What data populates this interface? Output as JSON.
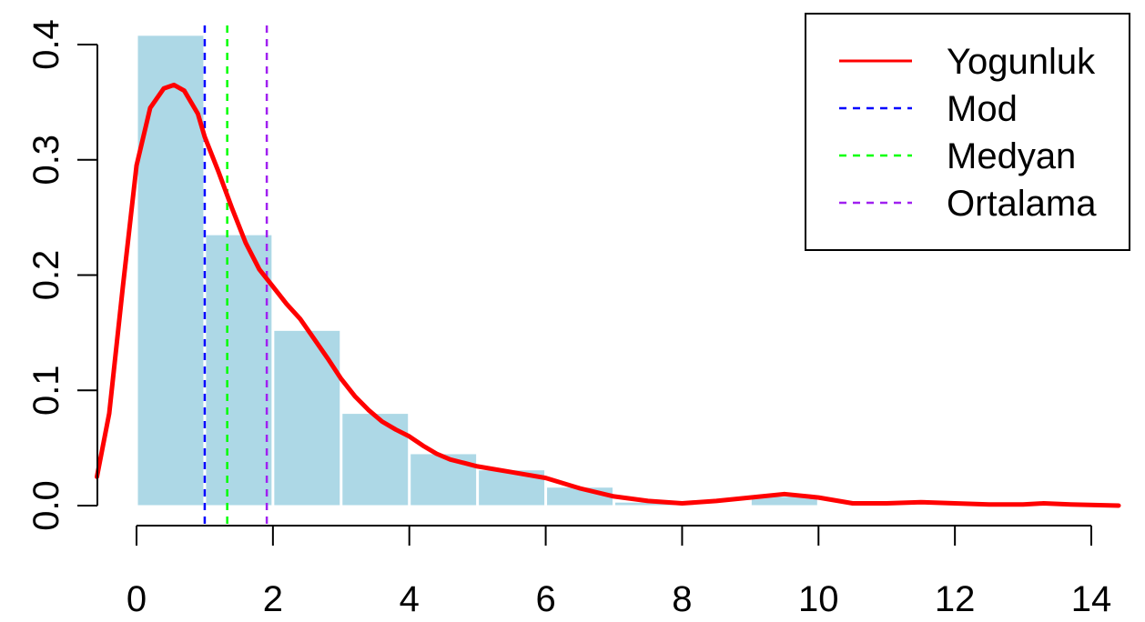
{
  "chart_data": {
    "type": "bar",
    "title": "",
    "xlabel": "",
    "ylabel": "",
    "xlim": [
      -0.6,
      14.4
    ],
    "ylim": [
      0,
      0.4
    ],
    "x_ticks": [
      "0",
      "2",
      "4",
      "6",
      "8",
      "10",
      "12",
      "14"
    ],
    "y_ticks": [
      "0.0",
      "0.1",
      "0.2",
      "0.3",
      "0.4"
    ],
    "histogram": {
      "color": "#add8e6",
      "bins": [
        {
          "x0": 0,
          "x1": 1,
          "density": 0.408
        },
        {
          "x0": 1,
          "x1": 2,
          "density": 0.235
        },
        {
          "x0": 2,
          "x1": 3,
          "density": 0.152
        },
        {
          "x0": 3,
          "x1": 4,
          "density": 0.08
        },
        {
          "x0": 4,
          "x1": 5,
          "density": 0.045
        },
        {
          "x0": 5,
          "x1": 6,
          "density": 0.031
        },
        {
          "x0": 6,
          "x1": 7,
          "density": 0.016
        },
        {
          "x0": 7,
          "x1": 8,
          "density": 0.003
        },
        {
          "x0": 8,
          "x1": 9,
          "density": 0.0
        },
        {
          "x0": 9,
          "x1": 10,
          "density": 0.008
        },
        {
          "x0": 10,
          "x1": 11,
          "density": 0.0
        },
        {
          "x0": 11,
          "x1": 12,
          "density": 0.0
        },
        {
          "x0": 12,
          "x1": 13,
          "density": 0.0
        },
        {
          "x0": 13,
          "x1": 14,
          "density": 0.0
        }
      ]
    },
    "series": [
      {
        "name": "Yogunluk",
        "type": "line",
        "color": "#ff0000",
        "x": [
          -0.58,
          -0.4,
          -0.2,
          0.0,
          0.2,
          0.4,
          0.55,
          0.7,
          0.9,
          1.0,
          1.2,
          1.4,
          1.6,
          1.8,
          2.0,
          2.2,
          2.4,
          2.6,
          2.8,
          3.0,
          3.2,
          3.4,
          3.6,
          3.8,
          4.0,
          4.2,
          4.4,
          4.6,
          4.8,
          5.0,
          5.5,
          6.0,
          6.5,
          7.0,
          7.5,
          8.0,
          8.5,
          9.0,
          9.5,
          10.0,
          10.5,
          11.0,
          11.5,
          12.0,
          12.5,
          13.0,
          13.3,
          13.7,
          14.4
        ],
        "y": [
          0.025,
          0.08,
          0.19,
          0.295,
          0.345,
          0.362,
          0.365,
          0.36,
          0.34,
          0.32,
          0.29,
          0.258,
          0.228,
          0.205,
          0.19,
          0.175,
          0.162,
          0.145,
          0.128,
          0.11,
          0.095,
          0.083,
          0.073,
          0.066,
          0.06,
          0.052,
          0.045,
          0.04,
          0.037,
          0.034,
          0.029,
          0.024,
          0.015,
          0.008,
          0.004,
          0.002,
          0.004,
          0.007,
          0.01,
          0.007,
          0.002,
          0.002,
          0.003,
          0.002,
          0.001,
          0.001,
          0.002,
          0.001,
          0.0
        ]
      }
    ],
    "vlines": [
      {
        "name": "Mod",
        "x": 1.0,
        "color": "#0000ff"
      },
      {
        "name": "Medyan",
        "x": 1.33,
        "color": "#00ff00"
      },
      {
        "name": "Ortalama",
        "x": 1.91,
        "color": "#a020f0"
      }
    ],
    "legend": {
      "position": "top-right",
      "entries": [
        {
          "label": "Yogunluk",
          "color": "#ff0000",
          "style": "solid"
        },
        {
          "label": "Mod",
          "color": "#0000ff",
          "style": "dashed"
        },
        {
          "label": "Medyan",
          "color": "#00ff00",
          "style": "dashed"
        },
        {
          "label": "Ortalama",
          "color": "#a020f0",
          "style": "dashed"
        }
      ]
    },
    "grid": false
  }
}
